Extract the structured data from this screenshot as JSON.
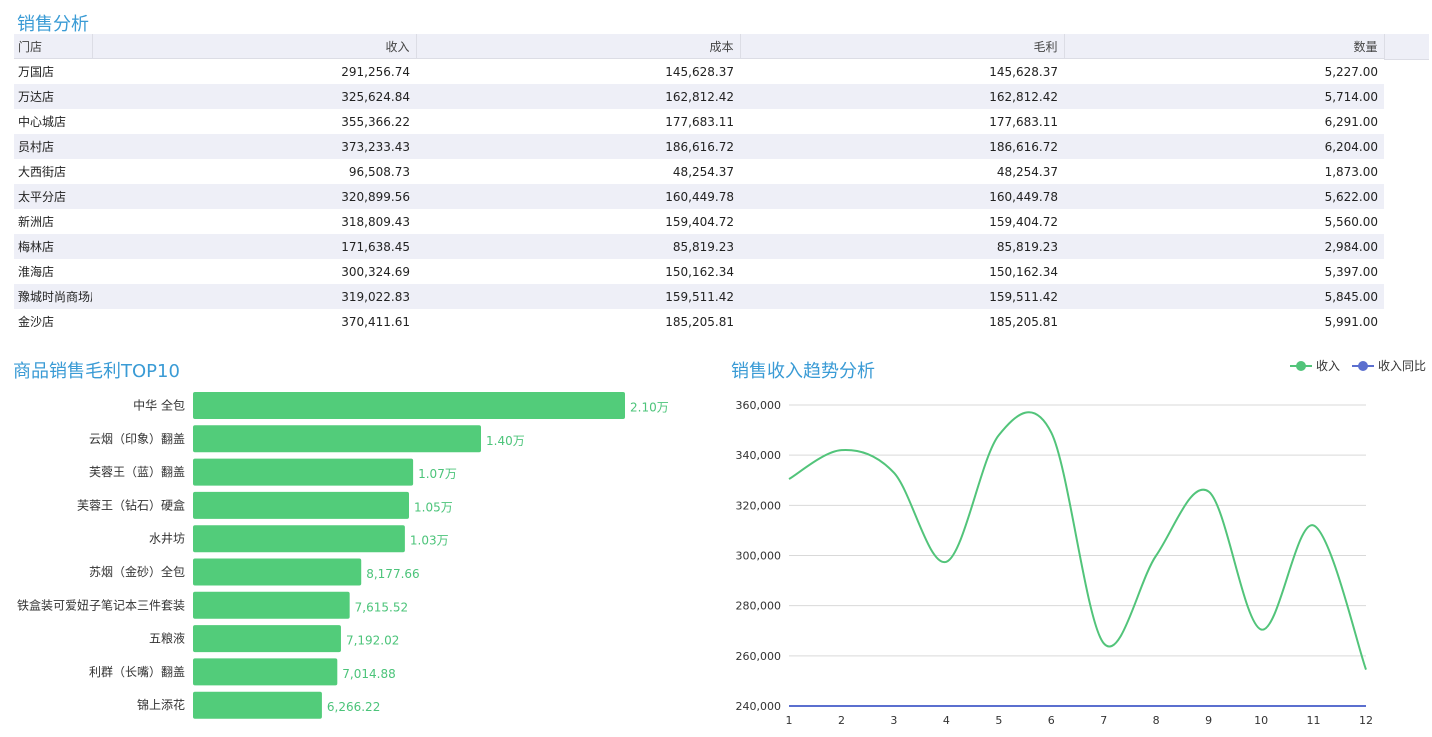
{
  "titles": {
    "table": "销售分析",
    "bar": "商品销售毛利TOP10",
    "line": "销售收入趋势分析"
  },
  "table": {
    "columns": [
      "门店",
      "收入",
      "成本",
      "毛利",
      "数量"
    ],
    "rows": [
      [
        "万国店",
        "291,256.74",
        "145,628.37",
        "145,628.37",
        "5,227.00"
      ],
      [
        "万达店",
        "325,624.84",
        "162,812.42",
        "162,812.42",
        "5,714.00"
      ],
      [
        "中心城店",
        "355,366.22",
        "177,683.11",
        "177,683.11",
        "6,291.00"
      ],
      [
        "员村店",
        "373,233.43",
        "186,616.72",
        "186,616.72",
        "6,204.00"
      ],
      [
        "大西街店",
        "96,508.73",
        "48,254.37",
        "48,254.37",
        "1,873.00"
      ],
      [
        "太平分店",
        "320,899.56",
        "160,449.78",
        "160,449.78",
        "5,622.00"
      ],
      [
        "新洲店",
        "318,809.43",
        "159,404.72",
        "159,404.72",
        "5,560.00"
      ],
      [
        "梅林店",
        "171,638.45",
        "85,819.23",
        "85,819.23",
        "2,984.00"
      ],
      [
        "淮海店",
        "300,324.69",
        "150,162.34",
        "150,162.34",
        "5,397.00"
      ],
      [
        "豫城时尚商场店",
        "319,022.83",
        "159,511.42",
        "159,511.42",
        "5,845.00"
      ],
      [
        "金沙店",
        "370,411.61",
        "185,205.81",
        "185,205.81",
        "5,991.00"
      ]
    ]
  },
  "chart_data": [
    {
      "type": "bar",
      "orientation": "horizontal",
      "title": "商品销售毛利TOP10",
      "categories": [
        "中华 全包",
        "云烟（印象）翻盖",
        "芙蓉王（蓝）翻盖",
        "芙蓉王（钻石）硬盒",
        "水井坊",
        "苏烟（金砂）全包",
        "铁盒装可爱妞子笔记本三件套装",
        "五粮液",
        "利群（长嘴）翻盖",
        "锦上添花"
      ],
      "values": [
        21000,
        14000,
        10700,
        10500,
        10300,
        8177.66,
        7615.52,
        7192.02,
        7014.88,
        6266.22
      ],
      "value_labels": [
        "2.10万",
        "1.40万",
        "1.07万",
        "1.05万",
        "1.03万",
        "8,177.66",
        "7,615.52",
        "7,192.02",
        "7,014.88",
        "6,266.22"
      ],
      "color": "#52cc7a"
    },
    {
      "type": "line",
      "title": "销售收入趋势分析",
      "x": [
        1,
        2,
        3,
        4,
        5,
        6,
        7,
        8,
        9,
        10,
        11,
        12
      ],
      "ylim": [
        240000,
        360000
      ],
      "yticks": [
        "240,000",
        "260,000",
        "280,000",
        "300,000",
        "320,000",
        "340,000",
        "360,000"
      ],
      "grid": true,
      "legend_position": "top-right",
      "series": [
        {
          "name": "收入",
          "color": "#52c47a",
          "values": [
            330500,
            342000,
            333000,
            297500,
            348000,
            349000,
            265000,
            300000,
            325500,
            270500,
            312000,
            254500
          ]
        },
        {
          "name": "收入同比",
          "color": "#5b6fcf",
          "values": [
            240000,
            240000,
            240000,
            240000,
            240000,
            240000,
            240000,
            240000,
            240000,
            240000,
            240000,
            240000
          ]
        }
      ]
    }
  ]
}
